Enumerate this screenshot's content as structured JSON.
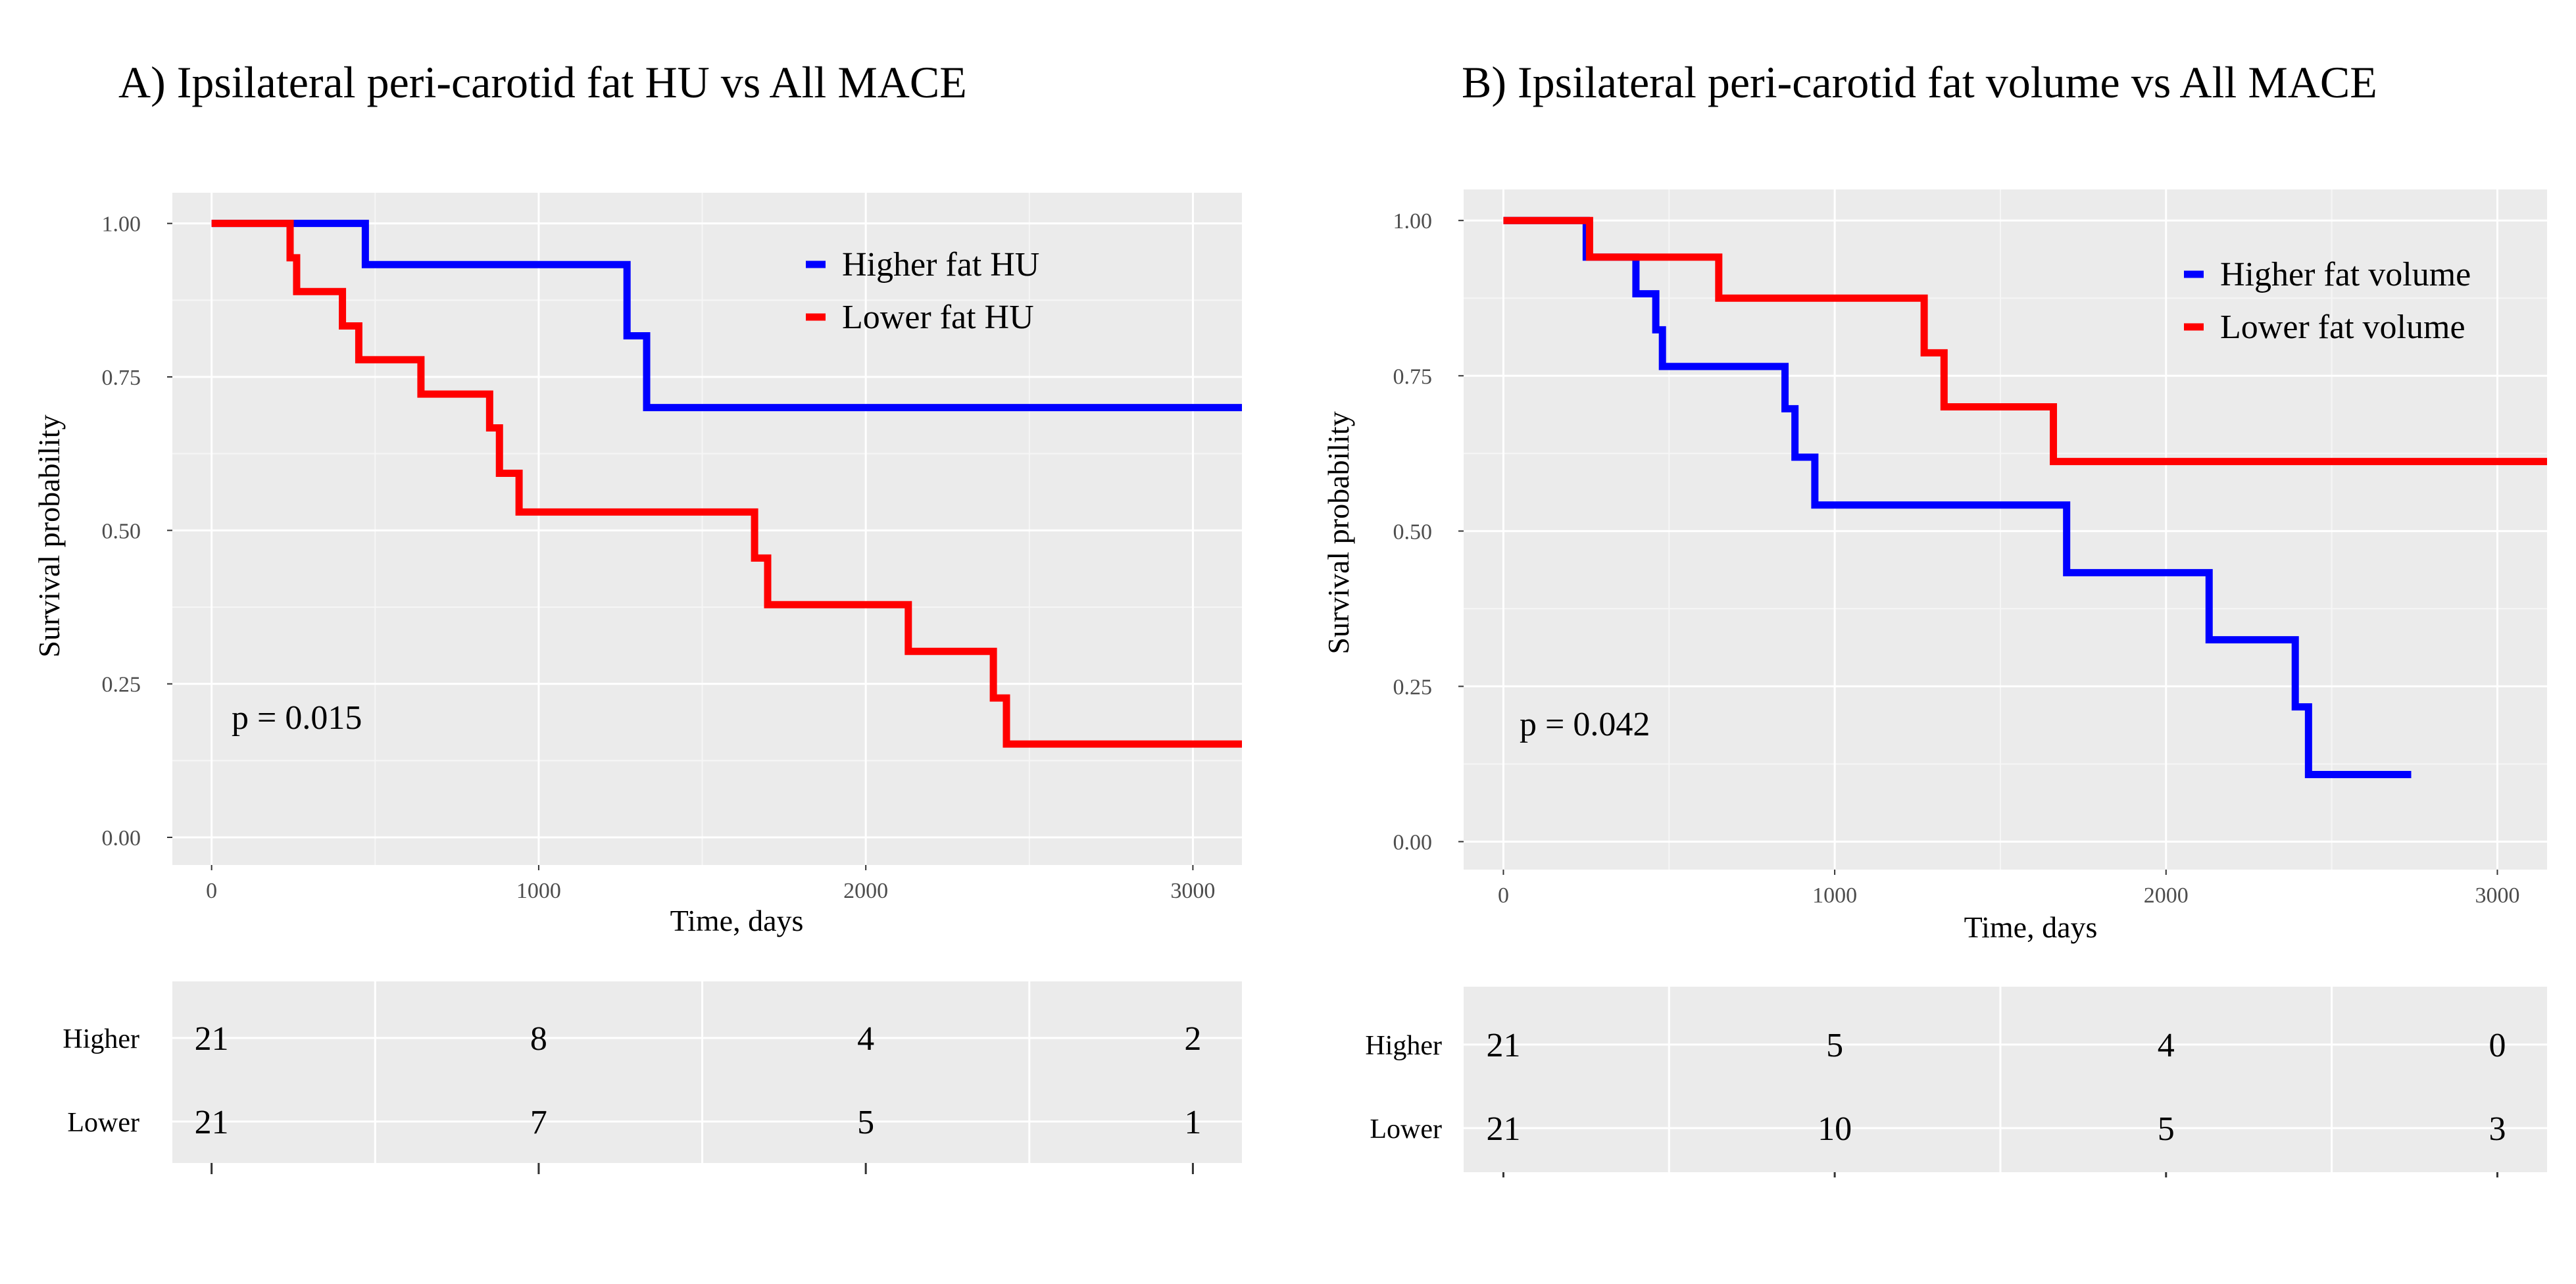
{
  "chart_data": [
    {
      "panel": "A",
      "type": "line",
      "title": "A) Ipsilateral peri-carotid fat HU vs All MACE",
      "xlabel": "Time, days",
      "ylabel": "Survival probability",
      "xlim": [
        -120,
        3150
      ],
      "ylim": [
        -0.045,
        1.05
      ],
      "x_ticks": [
        0,
        1000,
        2000,
        3000
      ],
      "y_ticks": [
        0.0,
        0.25,
        0.5,
        0.75,
        1.0
      ],
      "x_tick_labels": [
        "0",
        "1000",
        "2000",
        "3000"
      ],
      "y_tick_labels": [
        "0.00",
        "0.25",
        "0.50",
        "0.75",
        "1.00"
      ],
      "grid": true,
      "legend_position": "top-right",
      "annotation": "p = 0.015",
      "series": [
        {
          "name": "Higher fat HU",
          "color": "#0000ff",
          "steps": [
            [
              0,
              1.0
            ],
            [
              470,
              0.933
            ],
            [
              1270,
              0.817
            ],
            [
              1330,
              0.7
            ],
            [
              3150,
              0.7
            ]
          ]
        },
        {
          "name": "Lower fat HU",
          "color": "#ff0000",
          "steps": [
            [
              0,
              1.0
            ],
            [
              240,
              0.944
            ],
            [
              260,
              0.889
            ],
            [
              400,
              0.833
            ],
            [
              450,
              0.778
            ],
            [
              640,
              0.722
            ],
            [
              850,
              0.667
            ],
            [
              880,
              0.593
            ],
            [
              940,
              0.53
            ],
            [
              1660,
              0.455
            ],
            [
              1700,
              0.379
            ],
            [
              2130,
              0.303
            ],
            [
              2390,
              0.227
            ],
            [
              2430,
              0.152
            ],
            [
              3150,
              0.152
            ]
          ]
        }
      ],
      "risk_table": {
        "rows": [
          "Higher",
          "Lower"
        ],
        "times": [
          0,
          1000,
          2000,
          3000
        ],
        "values": [
          [
            "21",
            "8",
            "4",
            "2"
          ],
          [
            "21",
            "7",
            "5",
            "1"
          ]
        ]
      }
    },
    {
      "panel": "B",
      "type": "line",
      "title": "B) Ipsilateral peri-carotid fat volume vs All MACE",
      "xlabel": "Time, days",
      "ylabel": "Survival probability",
      "xlim": [
        -120,
        3150
      ],
      "ylim": [
        -0.045,
        1.05
      ],
      "x_ticks": [
        0,
        1000,
        2000,
        3000
      ],
      "y_ticks": [
        0.0,
        0.25,
        0.5,
        0.75,
        1.0
      ],
      "x_tick_labels": [
        "0",
        "1000",
        "2000",
        "3000"
      ],
      "y_tick_labels": [
        "0.00",
        "0.25",
        "0.50",
        "0.75",
        "1.00"
      ],
      "grid": true,
      "legend_position": "top-right",
      "annotation": "p = 0.042",
      "series": [
        {
          "name": "Higher fat volume",
          "color": "#0000ff",
          "steps": [
            [
              0,
              1.0
            ],
            [
              250,
              0.941
            ],
            [
              400,
              0.882
            ],
            [
              460,
              0.824
            ],
            [
              480,
              0.765
            ],
            [
              850,
              0.697
            ],
            [
              880,
              0.619
            ],
            [
              940,
              0.542
            ],
            [
              1700,
              0.433
            ],
            [
              2130,
              0.325
            ],
            [
              2390,
              0.217
            ],
            [
              2430,
              0.108
            ],
            [
              2740,
              0.108
            ]
          ]
        },
        {
          "name": "Lower fat volume",
          "color": "#ff0000",
          "steps": [
            [
              0,
              1.0
            ],
            [
              260,
              0.941
            ],
            [
              650,
              0.875
            ],
            [
              1270,
              0.787
            ],
            [
              1330,
              0.7
            ],
            [
              1660,
              0.612
            ],
            [
              3150,
              0.612
            ]
          ]
        }
      ],
      "risk_table": {
        "rows": [
          "Higher",
          "Lower"
        ],
        "times": [
          0,
          1000,
          2000,
          3000
        ],
        "values": [
          [
            "21",
            "5",
            "4",
            "0"
          ],
          [
            "21",
            "10",
            "5",
            "3"
          ]
        ]
      }
    }
  ]
}
